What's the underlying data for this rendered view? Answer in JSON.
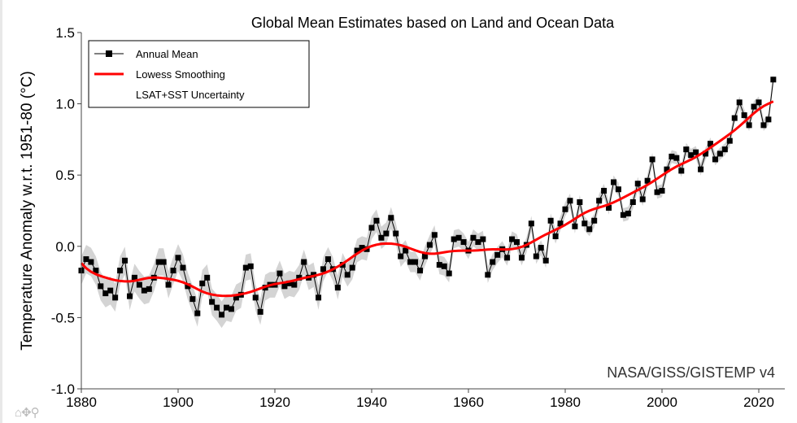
{
  "chart_data": {
    "type": "line",
    "title": "Global Mean Estimates based on Land and Ocean Data",
    "ylabel": "Temperature Anomaly w.r.t. 1951-80 (°C)",
    "xlabel": "",
    "credit": "NASA/GISS/GISTEMP v4",
    "xlim": [
      1880,
      2024
    ],
    "ylim": [
      -1.0,
      1.5
    ],
    "xticks": [
      "1880",
      "1900",
      "1920",
      "1940",
      "1960",
      "1980",
      "2000",
      "2020"
    ],
    "yticks": [
      "-1.0",
      "-0.5",
      "0.0",
      "0.5",
      "1.0",
      "1.5"
    ],
    "grid": false,
    "legend_position": "top-left",
    "legend": [
      "Annual Mean",
      "Lowess Smoothing",
      "LSAT+SST Uncertainty"
    ],
    "colors": {
      "annual": "#000000",
      "lowess": "#ff0000",
      "uncertainty": "#cccccc"
    },
    "x_start": 1880,
    "annual_mean": [
      -0.17,
      -0.09,
      -0.11,
      -0.17,
      -0.28,
      -0.33,
      -0.31,
      -0.36,
      -0.17,
      -0.1,
      -0.35,
      -0.22,
      -0.27,
      -0.31,
      -0.3,
      -0.22,
      -0.11,
      -0.11,
      -0.27,
      -0.17,
      -0.08,
      -0.15,
      -0.28,
      -0.37,
      -0.47,
      -0.26,
      -0.22,
      -0.39,
      -0.43,
      -0.48,
      -0.43,
      -0.44,
      -0.36,
      -0.34,
      -0.15,
      -0.14,
      -0.36,
      -0.46,
      -0.29,
      -0.27,
      -0.27,
      -0.19,
      -0.28,
      -0.26,
      -0.27,
      -0.22,
      -0.11,
      -0.22,
      -0.2,
      -0.36,
      -0.16,
      -0.09,
      -0.16,
      -0.29,
      -0.13,
      -0.2,
      -0.15,
      -0.03,
      -0.01,
      -0.02,
      0.13,
      0.18,
      0.06,
      0.09,
      0.2,
      0.09,
      -0.07,
      -0.03,
      -0.11,
      -0.11,
      -0.17,
      -0.07,
      0.01,
      0.08,
      -0.13,
      -0.14,
      -0.19,
      0.05,
      0.06,
      0.03,
      -0.03,
      0.06,
      0.03,
      0.05,
      -0.2,
      -0.11,
      -0.06,
      -0.02,
      -0.08,
      0.05,
      0.03,
      -0.08,
      0.01,
      0.16,
      -0.07,
      -0.01,
      -0.1,
      0.18,
      0.07,
      0.16,
      0.26,
      0.32,
      0.14,
      0.31,
      0.16,
      0.12,
      0.18,
      0.32,
      0.39,
      0.27,
      0.45,
      0.4,
      0.22,
      0.23,
      0.31,
      0.44,
      0.33,
      0.46,
      0.61,
      0.38,
      0.39,
      0.54,
      0.63,
      0.62,
      0.53,
      0.68,
      0.64,
      0.66,
      0.54,
      0.65,
      0.72,
      0.61,
      0.65,
      0.68,
      0.74,
      0.9,
      1.01,
      0.92,
      0.85,
      0.98,
      1.01,
      0.85,
      0.89,
      1.17
    ],
    "uncertainty_halfwidth": [
      [
        1880,
        0.1
      ],
      [
        1920,
        0.09
      ],
      [
        1940,
        0.08
      ],
      [
        1960,
        0.06
      ],
      [
        1980,
        0.05
      ],
      [
        2023,
        0.04
      ]
    ]
  },
  "toolbar": {
    "icons": [
      "home-icon",
      "pan-icon",
      "zoom-icon"
    ],
    "glyphs": "⌂✥⚲"
  }
}
